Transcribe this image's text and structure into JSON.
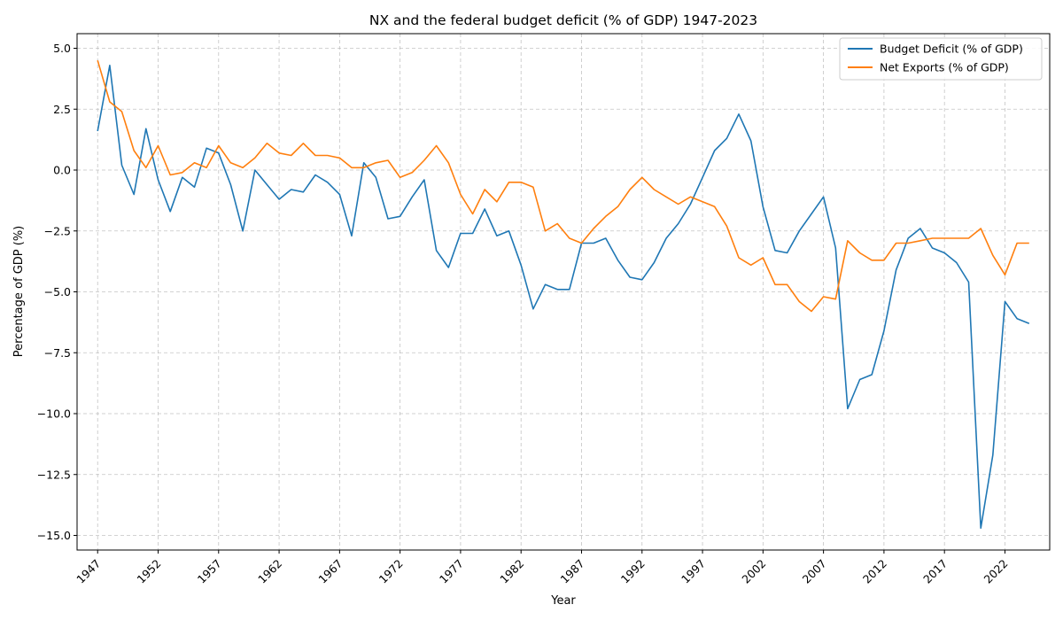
{
  "chart_data": {
    "type": "line",
    "title": "NX and the federal budget deficit (% of GDP) 1947-2023",
    "xlabel": "Year",
    "ylabel": "Percentage of GDP (%)",
    "xlim": [
      1945.3,
      2025.7
    ],
    "ylim": [
      -15.6,
      5.6
    ],
    "x_ticks": [
      1947,
      1952,
      1957,
      1962,
      1967,
      1972,
      1977,
      1982,
      1987,
      1992,
      1997,
      2002,
      2007,
      2012,
      2017,
      2022
    ],
    "y_ticks": [
      5.0,
      2.5,
      0.0,
      -2.5,
      -5.0,
      -7.5,
      -10.0,
      -12.5,
      -15.0
    ],
    "y_tick_labels": [
      "5.0",
      "2.5",
      "0.0",
      "−2.5",
      "−5.0",
      "−7.5",
      "−10.0",
      "−12.5",
      "−15.0"
    ],
    "grid": true,
    "legend_position": "top-right",
    "x": [
      1947,
      1948,
      1949,
      1950,
      1951,
      1952,
      1953,
      1954,
      1955,
      1956,
      1957,
      1958,
      1959,
      1960,
      1961,
      1962,
      1963,
      1964,
      1965,
      1966,
      1967,
      1968,
      1969,
      1970,
      1971,
      1972,
      1973,
      1974,
      1975,
      1976,
      1977,
      1978,
      1979,
      1980,
      1981,
      1982,
      1983,
      1984,
      1985,
      1986,
      1987,
      1988,
      1989,
      1990,
      1991,
      1992,
      1993,
      1994,
      1995,
      1996,
      1997,
      1998,
      1999,
      2000,
      2001,
      2002,
      2003,
      2004,
      2005,
      2006,
      2007,
      2008,
      2009,
      2010,
      2011,
      2012,
      2013,
      2014,
      2015,
      2016,
      2017,
      2018,
      2019,
      2020,
      2021,
      2022,
      2023,
      2024
    ],
    "series": [
      {
        "name": "Budget Deficit (% of GDP)",
        "color": "#1f77b4",
        "values": [
          1.6,
          4.3,
          0.2,
          -1.0,
          1.7,
          -0.4,
          -1.7,
          -0.3,
          -0.7,
          0.9,
          0.7,
          -0.6,
          -2.5,
          0.0,
          -0.6,
          -1.2,
          -0.8,
          -0.9,
          -0.2,
          -0.5,
          -1.0,
          -2.7,
          0.3,
          -0.3,
          -2.0,
          -1.9,
          -1.1,
          -0.4,
          -3.3,
          -4.0,
          -2.6,
          -2.6,
          -1.6,
          -2.7,
          -2.5,
          -3.9,
          -5.7,
          -4.7,
          -4.9,
          -4.9,
          -3.0,
          -3.0,
          -2.8,
          -3.7,
          -4.4,
          -4.5,
          -3.8,
          -2.8,
          -2.2,
          -1.4,
          -0.3,
          0.8,
          1.3,
          2.3,
          1.2,
          -1.5,
          -3.3,
          -3.4,
          -2.5,
          -1.8,
          -1.1,
          -3.2,
          -9.8,
          -8.6,
          -8.4,
          -6.6,
          -4.1,
          -2.8,
          -2.4,
          -3.2,
          -3.4,
          -3.8,
          -4.6,
          -14.7,
          -11.7,
          -5.4,
          -6.1,
          -6.3
        ]
      },
      {
        "name": "Net Exports (% of GDP)",
        "color": "#ff7f0e",
        "values": [
          4.5,
          2.8,
          2.4,
          0.8,
          0.1,
          1.0,
          -0.2,
          -0.1,
          0.3,
          0.1,
          1.0,
          0.3,
          0.1,
          0.5,
          1.1,
          0.7,
          0.6,
          1.1,
          0.6,
          0.6,
          0.5,
          0.1,
          0.1,
          0.3,
          0.4,
          -0.3,
          -0.1,
          0.4,
          1.0,
          0.3,
          -1.0,
          -1.8,
          -0.8,
          -1.3,
          -0.5,
          -0.5,
          -0.7,
          -2.5,
          -2.2,
          -2.8,
          -3.0,
          -2.4,
          -1.9,
          -1.5,
          -0.8,
          -0.3,
          -0.8,
          -1.1,
          -1.4,
          -1.1,
          -1.3,
          -1.5,
          -2.3,
          -3.6,
          -3.9,
          -3.6,
          -4.7,
          -4.7,
          -5.4,
          -5.8,
          -5.2,
          -5.3,
          -2.9,
          -3.4,
          -3.7,
          -3.7,
          -3.0,
          -3.0,
          -2.9,
          -2.8,
          -2.8,
          -2.8,
          -2.8,
          -2.4,
          -3.5,
          -4.3,
          -3.0,
          -3.0
        ]
      }
    ]
  }
}
